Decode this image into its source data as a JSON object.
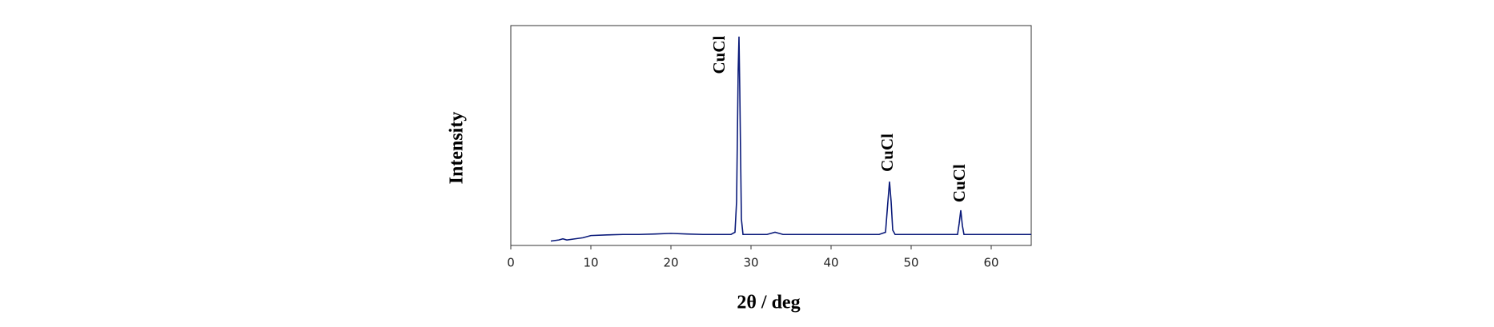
{
  "chart_data": {
    "type": "line",
    "xlabel": "2θ / deg",
    "ylabel": "Intensity",
    "xlim": [
      0,
      65
    ],
    "xticks": [
      0,
      10,
      20,
      30,
      40,
      50,
      60
    ],
    "ylim": [
      0,
      100
    ],
    "series": [
      {
        "color": "#0a1a7a",
        "x": [
          5,
          6,
          6.5,
          7,
          8,
          9,
          10,
          12,
          14,
          16,
          18,
          20,
          22,
          24,
          26,
          27.5,
          28,
          28.2,
          28.4,
          28.5,
          28.6,
          28.8,
          29,
          30,
          32,
          33,
          34,
          36,
          40,
          44,
          46,
          46.8,
          47.1,
          47.3,
          47.5,
          47.7,
          48,
          50,
          54,
          55.8,
          56,
          56.2,
          56.4,
          56.6,
          58,
          62,
          65
        ],
        "values": [
          2,
          2.5,
          3,
          2.5,
          3,
          3.5,
          4.5,
          4.8,
          5,
          5,
          5.2,
          5.5,
          5.2,
          5,
          5,
          5,
          6,
          20,
          80,
          95,
          70,
          12,
          5,
          5,
          5,
          6,
          5,
          5,
          5,
          5,
          5,
          6,
          20,
          29,
          20,
          7,
          5,
          5,
          5,
          5,
          10,
          16,
          9,
          5,
          5,
          5,
          5
        ]
      }
    ],
    "annotations": [
      {
        "text": "CuCl",
        "x": 26.2,
        "y": 78
      },
      {
        "text": "CuCl",
        "x": 47.2,
        "y": 33.5
      },
      {
        "text": "CuCl",
        "x": 56.2,
        "y": 19.6
      }
    ]
  }
}
